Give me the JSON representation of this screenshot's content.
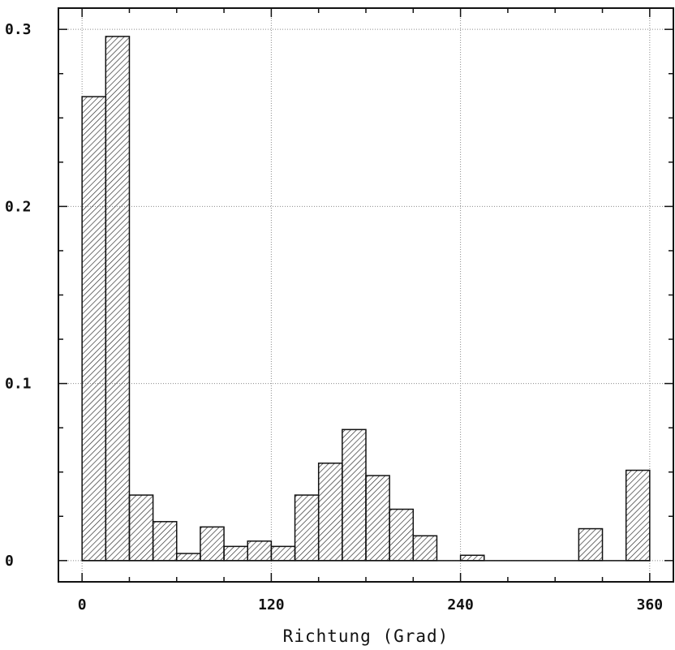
{
  "chart_data": {
    "type": "bar",
    "title": "",
    "xlabel": "Richtung (Grad)",
    "ylabel": "",
    "bin_width": 15,
    "bin_starts": [
      0,
      15,
      30,
      45,
      60,
      75,
      90,
      105,
      120,
      135,
      150,
      165,
      180,
      195,
      210,
      225,
      240,
      255,
      270,
      285,
      300,
      315,
      330,
      345
    ],
    "values": [
      0.262,
      0.296,
      0.037,
      0.022,
      0.004,
      0.019,
      0.008,
      0.011,
      0.008,
      0.037,
      0.055,
      0.074,
      0.048,
      0.029,
      0.014,
      0.0,
      0.003,
      0.0,
      0.0,
      0.0,
      0.0,
      0.018,
      0.0,
      0.051
    ],
    "xlim": [
      -15,
      375
    ],
    "ylim": [
      -0.012,
      0.312
    ],
    "xticks": [
      0,
      120,
      240,
      360
    ],
    "xtick_labels": [
      "0",
      "120",
      "240",
      "360"
    ],
    "yticks": [
      0,
      0.1,
      0.2,
      0.3
    ],
    "ytick_labels": [
      "0",
      "0.1",
      "0.2",
      "0.3"
    ],
    "grid": true,
    "fill": "hatched"
  },
  "colors": {
    "bar_edge": "#111111",
    "hatch": "#222222",
    "grid": "#8a8a8a",
    "background": "#ffffff"
  }
}
